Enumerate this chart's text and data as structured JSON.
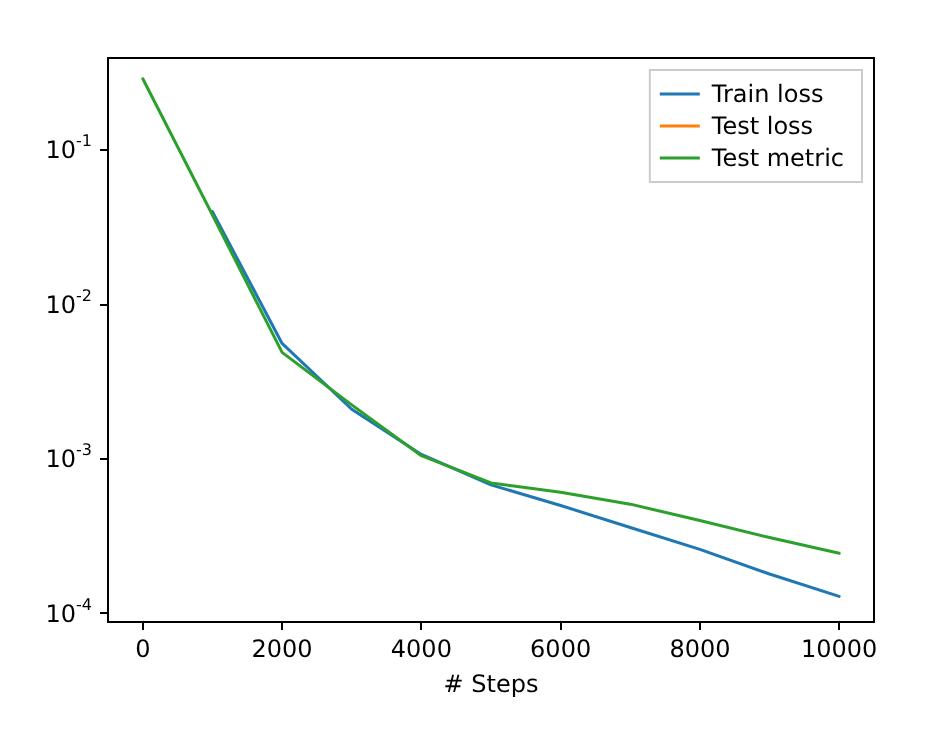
{
  "chart_data": {
    "type": "line",
    "xlabel": "# Steps",
    "x": [
      0,
      1000,
      2000,
      3000,
      4000,
      5000,
      6000,
      7000,
      8000,
      9000,
      10000
    ],
    "series": [
      {
        "name": "Train loss",
        "color": "#1f77b4",
        "values": [
          null,
          0.04,
          0.0056,
          0.0021,
          0.00107,
          0.00068,
          0.0005,
          0.00036,
          0.00026,
          0.00018,
          0.000129
        ]
      },
      {
        "name": "Test loss",
        "color": "#ff7f0e",
        "values": [
          null,
          null,
          null,
          null,
          null,
          null,
          null,
          null,
          null,
          null,
          null
        ]
      },
      {
        "name": "Test metric",
        "color": "#2ca02c",
        "values": [
          0.29,
          0.038,
          0.0049,
          0.00224,
          0.00105,
          0.0007,
          0.00061,
          0.00051,
          0.0004,
          0.00031,
          0.000245
        ]
      }
    ],
    "log": "y",
    "xlim": [
      -500,
      10500
    ],
    "ylim": [
      8.8e-05,
      0.395
    ],
    "xticks": [
      0,
      2000,
      4000,
      6000,
      8000,
      10000
    ],
    "yticks": [
      {
        "value": 0.0001,
        "label": "10$^{-4}$"
      },
      {
        "value": 0.001,
        "label": "10$^{-3}$"
      },
      {
        "value": 0.01,
        "label": "10$^{-2}$"
      },
      {
        "value": 0.1,
        "label": "10$^{-1}$"
      }
    ],
    "grid": false,
    "legend": "top right",
    "marker": "none",
    "line_style": "solid"
  }
}
